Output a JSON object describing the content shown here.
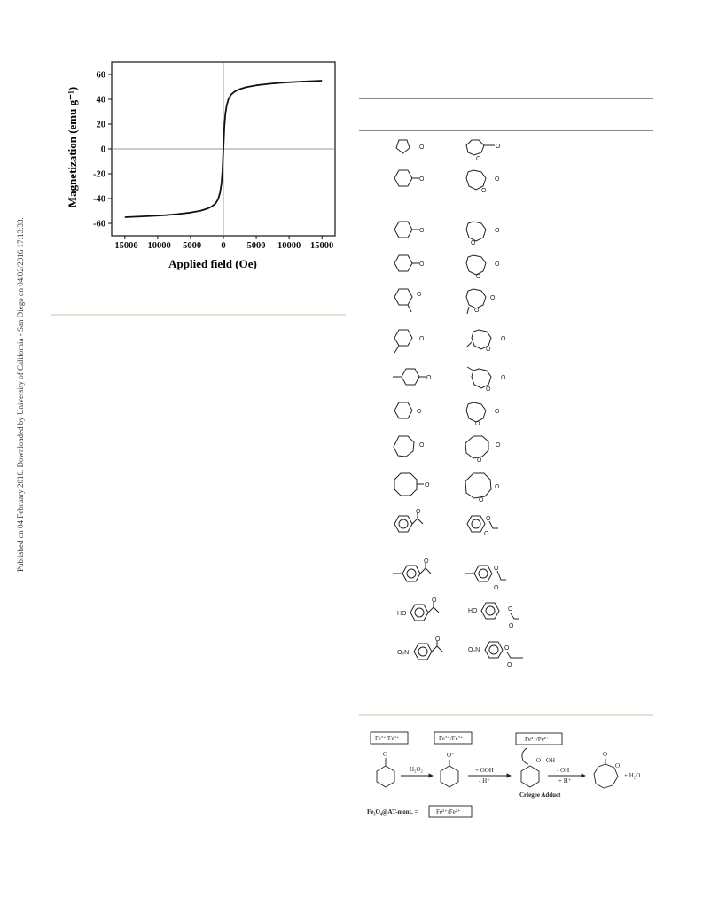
{
  "side_note": {
    "text": "Published on 04 February 2016. Downloaded by University of California - San Diego on 04/02/2016 17:13:33."
  },
  "chart_data": {
    "type": "line",
    "title": "",
    "xlabel": "Applied field (Oe)",
    "ylabel": "Magnetization (emu g⁻¹)",
    "xlim": [
      -17000,
      17000
    ],
    "ylim": [
      -70,
      70
    ],
    "xticks": [
      -15000,
      -10000,
      -5000,
      0,
      5000,
      10000,
      15000
    ],
    "xtick_labels": [
      "-15000",
      "-10000",
      "-5000",
      "0",
      "5000",
      "10000",
      "15000"
    ],
    "yticks": [
      -60,
      -40,
      -20,
      0,
      20,
      40,
      60
    ],
    "ytick_labels": [
      "-60",
      "-40",
      "-20",
      "0",
      "20",
      "40",
      "60"
    ],
    "grid": false,
    "series": [
      {
        "x": [
          -15000,
          -12000,
          -9000,
          -7000,
          -5000,
          -3500,
          -2500,
          -1800,
          -1200,
          -800,
          -500,
          -300,
          -150,
          0,
          150,
          300,
          500,
          800,
          1200,
          1800,
          2500,
          3500,
          5000,
          7000,
          9000,
          12000,
          15000
        ],
        "values": [
          -55,
          -54.3,
          -53.4,
          -52.5,
          -51.3,
          -49.8,
          -48.2,
          -46.5,
          -44,
          -40.5,
          -35,
          -28,
          -18,
          0,
          18,
          28,
          35,
          40.5,
          44,
          46.5,
          48.2,
          49.8,
          51.3,
          52.5,
          53.4,
          54.3,
          55
        ]
      }
    ]
  },
  "mechanism": {
    "catalyst_box": "Fe³⁺/Fe²⁺",
    "reagent_1": "H₂O₂",
    "reagent_2_top": "+ OOH⁻",
    "reagent_2_bottom": "- H⁺",
    "reagent_3_top": "- OH⁻",
    "reagent_3_bottom": "+ H⁺",
    "oxygen_anion": "O⁻",
    "oxygen": "O",
    "hydroperoxy": "O - OH",
    "water": "+ H₂O",
    "adduct_label": "Criegee Adduct",
    "legend_left": "Fe₃O₄@AT-mont. =",
    "legend_box": "Fe³⁺/Fe²⁺"
  },
  "structure_labels": {
    "oxygen": "O",
    "hydroxy": "HO",
    "nitro": "O₂N"
  }
}
